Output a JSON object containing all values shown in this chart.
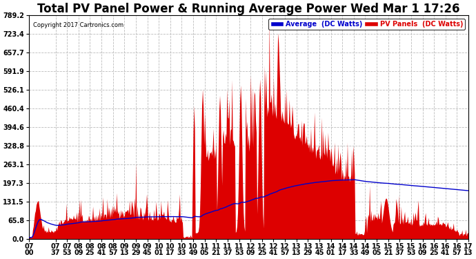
{
  "title": "Total PV Panel Power & Running Average Power Wed Mar 1 17:26",
  "copyright": "Copyright 2017 Cartronics.com",
  "legend_avg": "Average  (DC Watts)",
  "legend_pv": "PV Panels  (DC Watts)",
  "ymin": 0.0,
  "ymax": 789.2,
  "yticks": [
    0.0,
    65.8,
    131.5,
    197.3,
    263.1,
    328.8,
    394.6,
    460.4,
    526.1,
    591.9,
    657.7,
    723.4,
    789.2
  ],
  "bg_color": "#ffffff",
  "plot_bg_color": "#ffffff",
  "grid_color": "#bbbbbb",
  "pv_color": "#dd0000",
  "avg_color": "#0000cc",
  "title_fontsize": 12,
  "tick_fontsize": 7,
  "figsize": [
    6.9,
    3.75
  ],
  "dpi": 100
}
